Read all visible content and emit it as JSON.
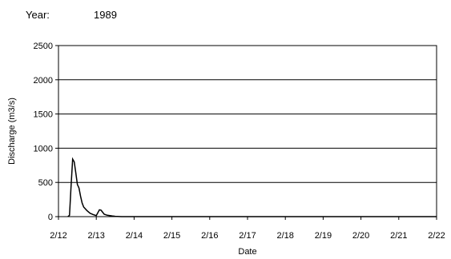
{
  "header": {
    "year_label": "Year:",
    "year_value": "1989"
  },
  "chart_data": {
    "type": "line",
    "title": "",
    "xlabel": "Date",
    "ylabel": "Discharge (m3/s)",
    "ylim": [
      0,
      2500
    ],
    "yticks": [
      "0",
      "500",
      "1000",
      "1500",
      "2000",
      "2500"
    ],
    "xlim": [
      "2/12",
      "2/22"
    ],
    "xticks": [
      "2/12",
      "2/13",
      "2/14",
      "2/15",
      "2/16",
      "2/17",
      "2/18",
      "2/19",
      "2/20",
      "2/21",
      "2/22"
    ],
    "grid": "horizontal",
    "legend": "none",
    "series": [
      {
        "color": "#000000",
        "points": [
          {
            "x": "2/12 06:00",
            "y": 0
          },
          {
            "x": "2/12 07:00",
            "y": 20
          },
          {
            "x": "2/12 08:00",
            "y": 450
          },
          {
            "x": "2/12 09:00",
            "y": 840
          },
          {
            "x": "2/12 10:00",
            "y": 800
          },
          {
            "x": "2/12 11:00",
            "y": 640
          },
          {
            "x": "2/12 12:00",
            "y": 470
          },
          {
            "x": "2/12 13:00",
            "y": 420
          },
          {
            "x": "2/12 14:00",
            "y": 300
          },
          {
            "x": "2/12 15:00",
            "y": 200
          },
          {
            "x": "2/12 16:00",
            "y": 140
          },
          {
            "x": "2/12 18:00",
            "y": 90
          },
          {
            "x": "2/12 20:00",
            "y": 50
          },
          {
            "x": "2/12 22:00",
            "y": 30
          },
          {
            "x": "2/13 00:00",
            "y": 15
          },
          {
            "x": "2/13 02:00",
            "y": 100
          },
          {
            "x": "2/13 03:00",
            "y": 95
          },
          {
            "x": "2/13 05:00",
            "y": 35
          },
          {
            "x": "2/13 07:00",
            "y": 20
          },
          {
            "x": "2/13 10:00",
            "y": 10
          },
          {
            "x": "2/13 12:00",
            "y": 5
          },
          {
            "x": "2/13 16:00",
            "y": 0
          },
          {
            "x": "2/22 00:00",
            "y": 0
          }
        ]
      }
    ]
  }
}
